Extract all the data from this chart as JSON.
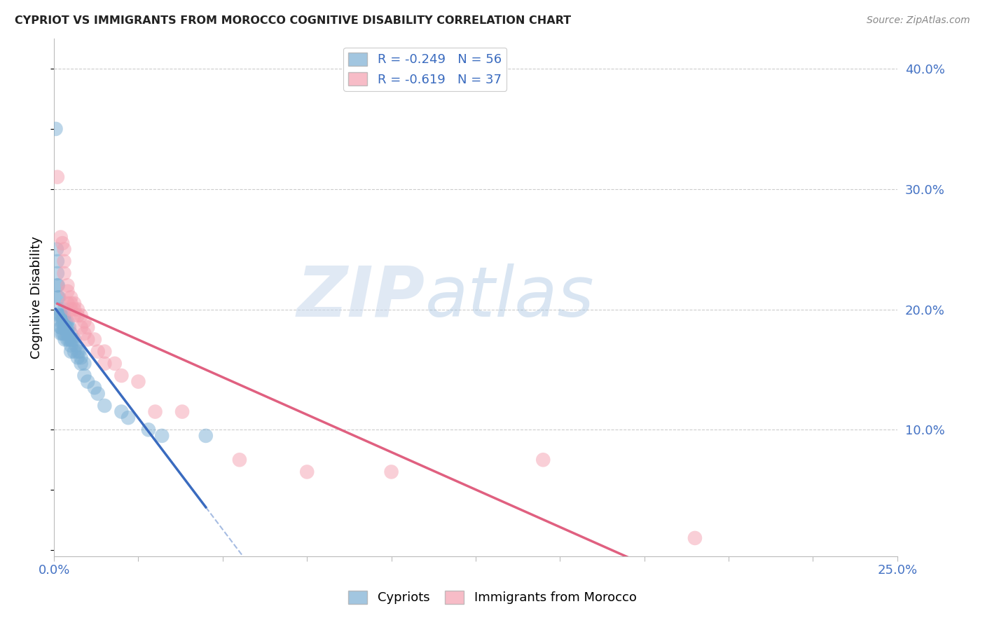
{
  "title": "CYPRIOT VS IMMIGRANTS FROM MOROCCO COGNITIVE DISABILITY CORRELATION CHART",
  "source": "Source: ZipAtlas.com",
  "ylabel": "Cognitive Disability",
  "ylabel_right_ticks": [
    "40.0%",
    "30.0%",
    "20.0%",
    "10.0%"
  ],
  "ylabel_right_vals": [
    0.4,
    0.3,
    0.2,
    0.1
  ],
  "xmin": 0.0,
  "xmax": 0.25,
  "ymin": -0.005,
  "ymax": 0.425,
  "legend1_label": "R = -0.249   N = 56",
  "legend2_label": "R = -0.619   N = 37",
  "cypriot_color": "#7bafd4",
  "morocco_color": "#f4a0b0",
  "cypriot_line_color": "#3a6bbf",
  "morocco_line_color": "#e06080",
  "watermark_zip": "ZIP",
  "watermark_atlas": "atlas",
  "cypriot_x": [
    0.0005,
    0.0008,
    0.001,
    0.001,
    0.001,
    0.0012,
    0.0012,
    0.0015,
    0.0015,
    0.0015,
    0.002,
    0.002,
    0.002,
    0.002,
    0.0022,
    0.0022,
    0.0025,
    0.0025,
    0.003,
    0.003,
    0.003,
    0.003,
    0.003,
    0.0032,
    0.0035,
    0.0035,
    0.004,
    0.004,
    0.004,
    0.004,
    0.0045,
    0.0045,
    0.005,
    0.005,
    0.005,
    0.005,
    0.0055,
    0.006,
    0.006,
    0.0065,
    0.007,
    0.007,
    0.0075,
    0.008,
    0.008,
    0.009,
    0.009,
    0.01,
    0.012,
    0.013,
    0.015,
    0.02,
    0.022,
    0.028,
    0.032,
    0.045
  ],
  "cypriot_y": [
    0.35,
    0.25,
    0.24,
    0.23,
    0.22,
    0.22,
    0.21,
    0.21,
    0.2,
    0.195,
    0.195,
    0.19,
    0.185,
    0.18,
    0.195,
    0.185,
    0.19,
    0.18,
    0.2,
    0.195,
    0.19,
    0.185,
    0.18,
    0.175,
    0.19,
    0.185,
    0.19,
    0.185,
    0.18,
    0.175,
    0.185,
    0.175,
    0.18,
    0.175,
    0.17,
    0.165,
    0.175,
    0.175,
    0.165,
    0.17,
    0.165,
    0.16,
    0.165,
    0.16,
    0.155,
    0.155,
    0.145,
    0.14,
    0.135,
    0.13,
    0.12,
    0.115,
    0.11,
    0.1,
    0.095,
    0.095
  ],
  "morocco_x": [
    0.001,
    0.002,
    0.0025,
    0.003,
    0.003,
    0.003,
    0.004,
    0.004,
    0.004,
    0.005,
    0.005,
    0.005,
    0.006,
    0.006,
    0.006,
    0.007,
    0.007,
    0.008,
    0.008,
    0.009,
    0.009,
    0.01,
    0.01,
    0.012,
    0.013,
    0.015,
    0.015,
    0.018,
    0.02,
    0.025,
    0.03,
    0.038,
    0.055,
    0.075,
    0.1,
    0.145,
    0.19
  ],
  "morocco_y": [
    0.31,
    0.26,
    0.255,
    0.25,
    0.24,
    0.23,
    0.22,
    0.215,
    0.205,
    0.21,
    0.205,
    0.2,
    0.205,
    0.2,
    0.195,
    0.2,
    0.195,
    0.195,
    0.185,
    0.19,
    0.18,
    0.185,
    0.175,
    0.175,
    0.165,
    0.165,
    0.155,
    0.155,
    0.145,
    0.14,
    0.115,
    0.115,
    0.075,
    0.065,
    0.065,
    0.075,
    0.01
  ]
}
